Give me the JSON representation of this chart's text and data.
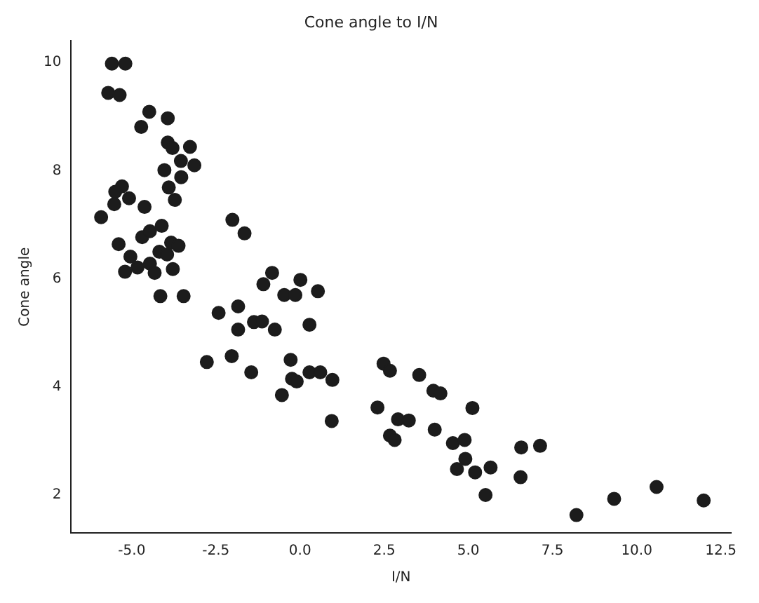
{
  "chart_data": {
    "type": "scatter",
    "title": "Cone angle to I/N",
    "xlabel": "I/N",
    "ylabel": "Cone angle",
    "x": [
      -5.59,
      -5.19,
      -5.7,
      -5.36,
      -4.48,
      -4.72,
      -3.93,
      -3.93,
      -3.79,
      -3.27,
      -3.54,
      -3.14,
      -4.03,
      -3.53,
      -3.9,
      -3.72,
      -5.29,
      -5.49,
      -5.08,
      -5.52,
      -4.62,
      -5.91,
      -4.69,
      -4.46,
      -4.11,
      -5.39,
      -3.83,
      -3.61,
      -4.18,
      -3.95,
      -5.04,
      -5.2,
      -4.83,
      -4.46,
      -4.32,
      -3.78,
      -4.15,
      -3.46,
      -2.01,
      -1.65,
      -2.42,
      -1.84,
      -1.84,
      -1.37,
      -1.13,
      -0.75,
      0.28,
      -1.09,
      -0.83,
      -0.47,
      -0.14,
      0.01,
      0.53,
      -2.77,
      -2.03,
      -1.45,
      -0.28,
      -0.24,
      -0.1,
      0.28,
      0.6,
      0.96,
      -0.54,
      0.94,
      2.48,
      2.67,
      3.54,
      3.96,
      4.17,
      5.12,
      2.3,
      2.91,
      3.23,
      2.67,
      2.81,
      4.0,
      4.54,
      4.89,
      4.91,
      4.66,
      5.2,
      5.66,
      5.51,
      6.57,
      7.13,
      6.55,
      8.21,
      9.33,
      10.59,
      11.99
    ],
    "values": [
      9.98,
      9.98,
      9.44,
      9.4,
      9.09,
      8.81,
      8.97,
      8.52,
      8.42,
      8.44,
      8.18,
      8.1,
      8.01,
      7.88,
      7.69,
      7.46,
      7.71,
      7.61,
      7.49,
      7.38,
      7.33,
      7.14,
      6.77,
      6.88,
      6.98,
      6.64,
      6.67,
      6.61,
      6.5,
      6.45,
      6.41,
      6.13,
      6.21,
      6.28,
      6.11,
      6.18,
      5.68,
      5.68,
      7.09,
      6.84,
      5.37,
      5.49,
      5.06,
      5.2,
      5.21,
      5.06,
      5.15,
      5.9,
      6.11,
      5.7,
      5.7,
      5.98,
      5.77,
      4.46,
      4.57,
      4.27,
      4.5,
      4.15,
      4.1,
      4.27,
      4.27,
      4.13,
      3.85,
      3.37,
      4.43,
      4.3,
      4.22,
      3.93,
      3.88,
      3.61,
      3.62,
      3.4,
      3.38,
      3.1,
      3.02,
      3.21,
      2.96,
      3.02,
      2.67,
      2.48,
      2.42,
      2.51,
      2.0,
      2.88,
      2.91,
      2.33,
      1.63,
      1.93,
      2.15,
      1.9
    ],
    "color": "#1c1c1c",
    "marker": "circle",
    "grid": false,
    "legend": false,
    "xlim": [
      -6.8,
      12.8
    ],
    "ylim": [
      1.3,
      10.4
    ],
    "xticks": [
      {
        "value": -5,
        "label": "-5.0"
      },
      {
        "value": -2.5,
        "label": "-2.5"
      },
      {
        "value": 0,
        "label": "0.0"
      },
      {
        "value": 2.5,
        "label": "2.5"
      },
      {
        "value": 5,
        "label": "5.0"
      },
      {
        "value": 7.5,
        "label": "7.5"
      },
      {
        "value": 10,
        "label": "10.0"
      },
      {
        "value": 12.5,
        "label": "12.5"
      }
    ],
    "yticks": [
      2,
      4,
      6,
      8,
      10
    ]
  }
}
